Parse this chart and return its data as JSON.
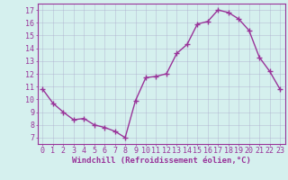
{
  "x": [
    0,
    1,
    2,
    3,
    4,
    5,
    6,
    7,
    8,
    9,
    10,
    11,
    12,
    13,
    14,
    15,
    16,
    17,
    18,
    19,
    20,
    21,
    22,
    23
  ],
  "y": [
    10.8,
    9.7,
    9.0,
    8.4,
    8.5,
    8.0,
    7.8,
    7.5,
    7.0,
    9.9,
    11.7,
    11.8,
    12.0,
    13.6,
    14.3,
    15.9,
    16.1,
    17.0,
    16.8,
    16.3,
    15.4,
    13.3,
    12.2,
    10.8
  ],
  "line_color": "#993399",
  "marker": "+",
  "marker_size": 4,
  "marker_lw": 1.0,
  "bg_color": "#d5f0ee",
  "grid_color": "#aaaacc",
  "xlabel": "Windchill (Refroidissement éolien,°C)",
  "xlabel_color": "#993399",
  "xlabel_fontsize": 6.5,
  "ylabel_ticks": [
    7,
    8,
    9,
    10,
    11,
    12,
    13,
    14,
    15,
    16,
    17
  ],
  "xtick_labels": [
    "0",
    "1",
    "2",
    "3",
    "4",
    "5",
    "6",
    "7",
    "8",
    "9",
    "10",
    "11",
    "12",
    "13",
    "14",
    "15",
    "16",
    "17",
    "18",
    "19",
    "20",
    "21",
    "22",
    "23"
  ],
  "ylim": [
    6.5,
    17.5
  ],
  "xlim": [
    -0.5,
    23.5
  ],
  "tick_fontsize": 6.0,
  "tick_color": "#993399",
  "spine_color": "#993399",
  "line_width": 1.0
}
